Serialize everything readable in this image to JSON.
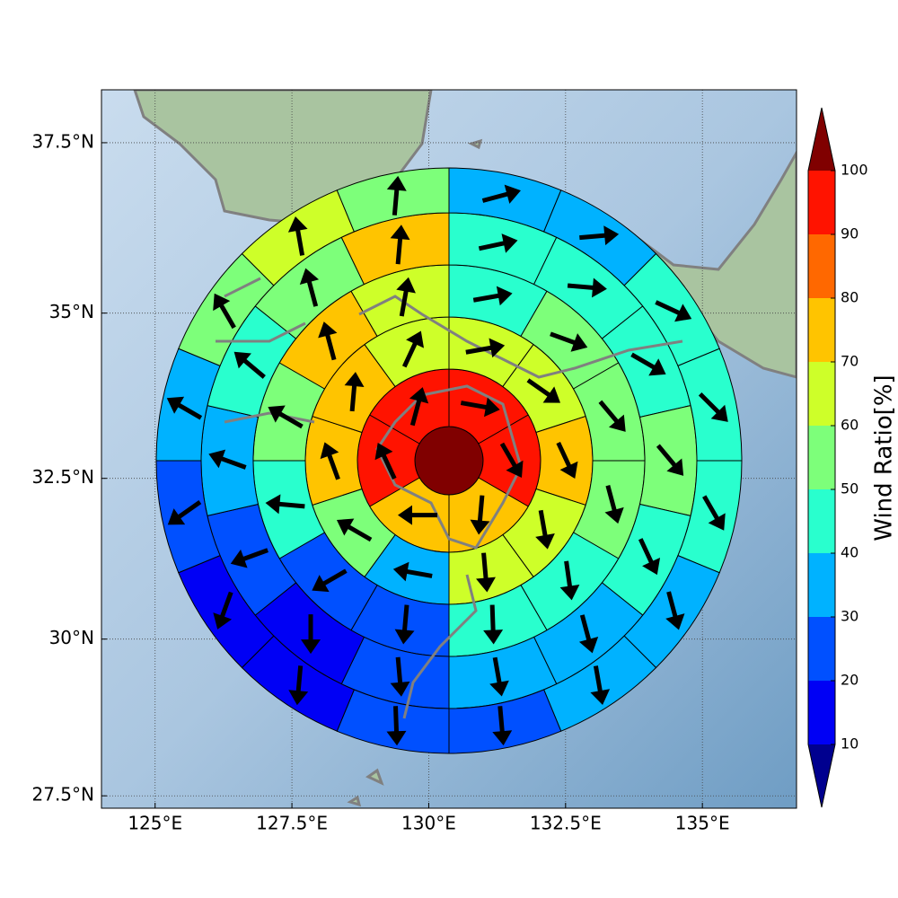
{
  "chart_data": {
    "type": "polar-sector-map",
    "projection": "mercator",
    "xlim": [
      124.02,
      136.72
    ],
    "ylim": [
      27.3,
      38.26
    ],
    "xticks": [
      {
        "value": 125,
        "label": "125°E"
      },
      {
        "value": 127.5,
        "label": "127.5°E"
      },
      {
        "value": 130,
        "label": "130°E"
      },
      {
        "value": 132.5,
        "label": "132.5°E"
      },
      {
        "value": 135,
        "label": "135°E"
      }
    ],
    "yticks": [
      {
        "value": 27.5,
        "label": "27.5°N"
      },
      {
        "value": 30,
        "label": "30°N"
      },
      {
        "value": 32.5,
        "label": "32.5°N"
      },
      {
        "value": 35,
        "label": "35°N"
      },
      {
        "value": 37.5,
        "label": "37.5°N"
      }
    ],
    "grid": true,
    "center_value": 102,
    "rings": [
      {
        "values": [
          92,
          92,
          72,
          72,
          92,
          92
        ],
        "directions": [
          100,
          150,
          185,
          270,
          335,
          15
        ]
      },
      {
        "values": [
          65,
          65,
          72,
          65,
          62,
          35,
          55,
          72,
          78,
          65
        ],
        "directions": [
          80,
          125,
          155,
          170,
          175,
          280,
          300,
          340,
          5,
          25
        ]
      },
      {
        "values": [
          45,
          55,
          55,
          55,
          45,
          45,
          25,
          25,
          45,
          55,
          72,
          65
        ],
        "directions": [
          80,
          110,
          140,
          165,
          172,
          178,
          185,
          240,
          275,
          300,
          345,
          10
        ]
      },
      {
        "values": [
          45,
          45,
          45,
          55,
          45,
          35,
          35,
          22,
          15,
          22,
          35,
          45,
          55,
          72
        ],
        "directions": [
          78,
          95,
          120,
          140,
          155,
          165,
          170,
          175,
          180,
          250,
          290,
          310,
          345,
          5
        ]
      },
      {
        "values": [
          35,
          35,
          45,
          45,
          45,
          35,
          35,
          22,
          22,
          15,
          15,
          22,
          35,
          55,
          65,
          55
        ],
        "directions": [
          75,
          85,
          115,
          135,
          150,
          165,
          170,
          175,
          178,
          185,
          200,
          235,
          300,
          330,
          350,
          5
        ]
      }
    ],
    "arrow_color": "#000000",
    "colorbar": {
      "label": "Wind Ratio[%]",
      "boundaries": [
        10,
        20,
        30,
        40,
        50,
        60,
        70,
        80,
        90,
        100
      ],
      "colors": [
        "#00008f",
        "#0000f5",
        "#0050ff",
        "#00b2ff",
        "#29ffce",
        "#7dff7a",
        "#ceff29",
        "#ffc400",
        "#ff6800",
        "#ff1300",
        "#800000"
      ]
    }
  }
}
